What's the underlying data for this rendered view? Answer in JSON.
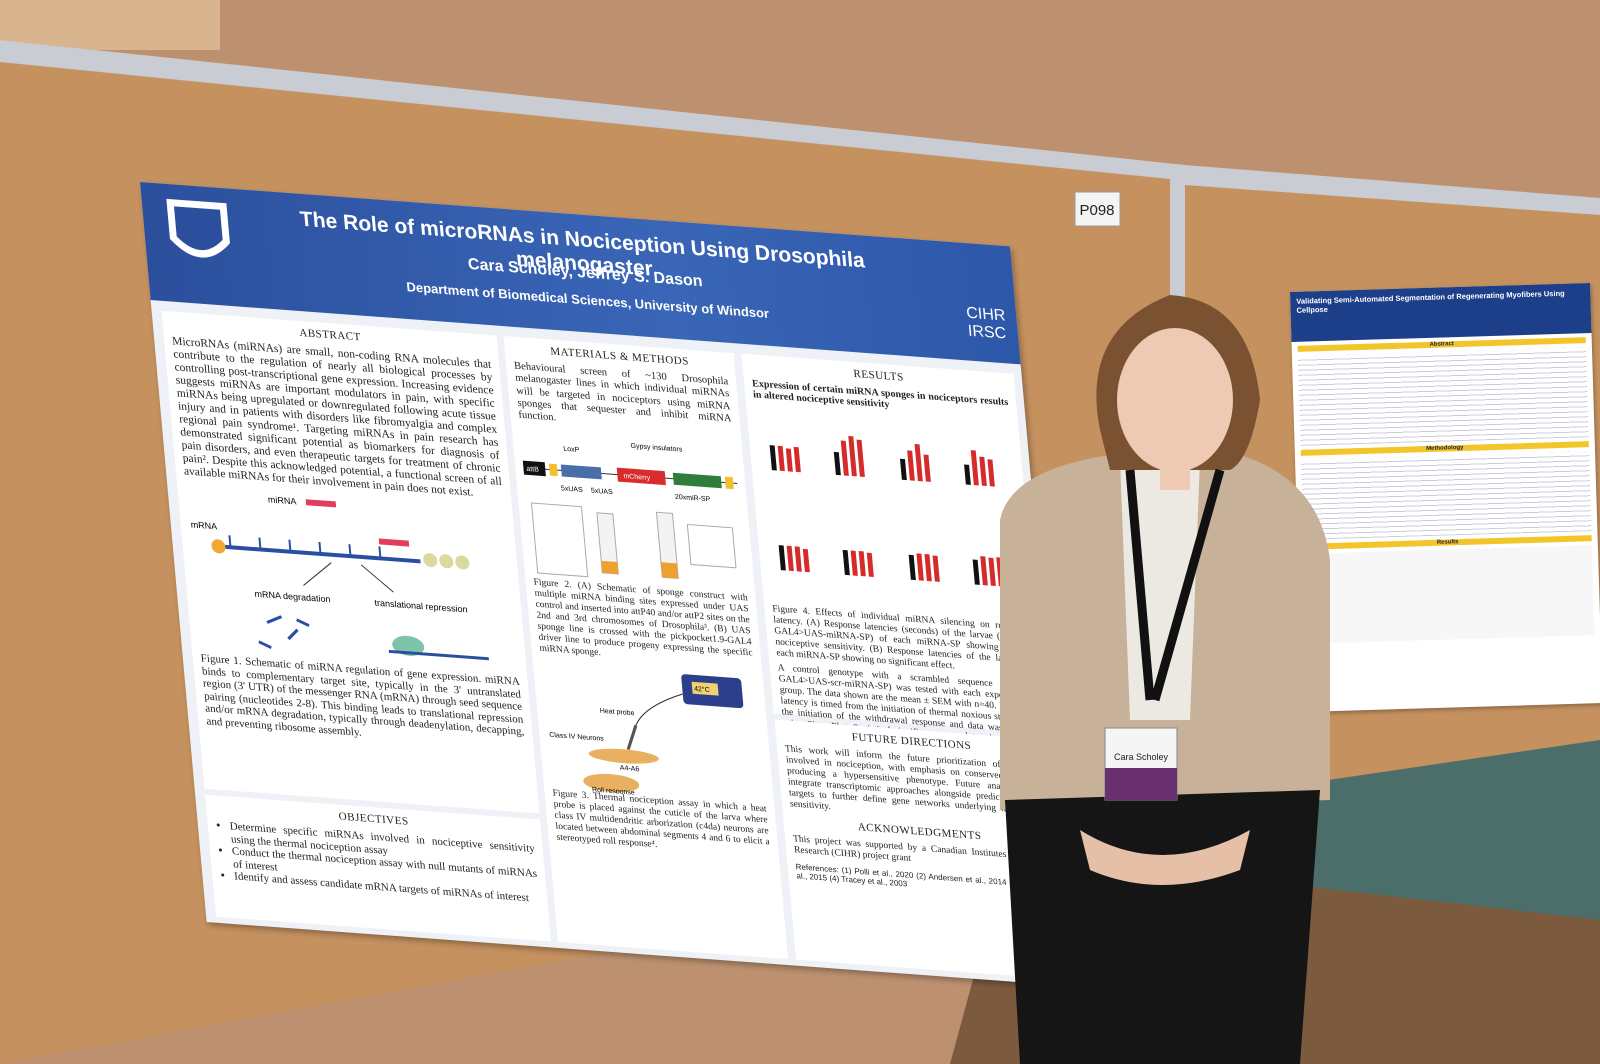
{
  "sign": "P098",
  "poster": {
    "title": "The Role of microRNAs in Nociception Using Drosophila melanogaster",
    "authors": "Cara Scholey, Jeffrey S. Dason",
    "department": "Department of Biomedical Sciences, University of Windsor",
    "logo_lines": [
      "CIHR",
      "IRSC"
    ],
    "abstract": {
      "heading": "ABSTRACT",
      "text": "MicroRNAs (miRNAs) are small, non-coding RNA molecules that contribute to the regulation of nearly all biological processes by controlling post-transcriptional gene expression. Increasing evidence suggests miRNAs are important modulators in pain, with specific miRNAs being upregulated or downregulated following acute tissue injury and in patients with disorders like fibromyalgia and complex regional pain syndrome¹. Targeting miRNAs in pain research has demonstrated significant potential as biomarkers for diagnosis of pain disorders, and even therapeutic targets for treatment of chronic pain². Despite this acknowledged potential, a functional screen of all available miRNAs for their involvement in pain does not exist."
    },
    "figure1": {
      "labels": [
        "miRNA",
        "mRNA",
        "mRNA degradation",
        "translational repression"
      ],
      "caption": "Figure 1. Schematic of miRNA regulation of gene expression. miRNA binds to complementary target site, typically in the 3' untranslated region (3' UTR) of the messenger RNA (mRNA) through seed sequence pairing (nucleotides 2-8). This binding leads to translational repression and/or mRNA degradation, typically through deadenylation, decapping, and preventing ribosome assembly."
    },
    "objectives": {
      "heading": "OBJECTIVES",
      "items": [
        "Determine specific miRNAs involved in nociceptive sensitivity using the thermal nociception assay",
        "Conduct the thermal nociception assay with null mutants of miRNAs of interest",
        "Identify and assess candidate mRNA targets of miRNAs of interest"
      ]
    },
    "methods": {
      "heading": "MATERIALS & METHODS",
      "text": "Behavioural screen of ~130 Drosophila melanogaster lines in which individual miRNAs will be targeted in nociceptors using miRNA sponges that sequester and inhibit miRNA function.",
      "construct_labels": [
        "attB",
        "LoxP",
        "Gypsy insulators",
        "mCherry",
        "5xUAS",
        "5xUAS",
        "20xmiR-SP"
      ],
      "figure2_caption": "Figure 2. (A) Schematic of sponge construct with multiple miRNA binding sites expressed under UAS control and inserted into attP40 and/or attP2 sites on the 2nd and 3rd chromosomes of Drosophila³. (B) UAS sponge line is crossed with the pickpocket1.9-GAL4 driver line to produce progeny expressing the specific miRNA sponge.",
      "figure3_labels": [
        "Heat probe",
        "42°C",
        "Class IV Neurons",
        "A4-A6",
        "Roll response"
      ],
      "figure3_caption": "Figure 3. Thermal nociception assay in which a heat probe is placed against the cuticle of the larva where class IV multidendritic arborization (c4da) neurons are located between abdominal segments 4 and 6 to elicit a stereotyped roll response⁴."
    },
    "results": {
      "heading": "RESULTS",
      "subheading": "Expression of certain miRNA sponges in nociceptors results in altered nociceptive sensitivity",
      "figure4_caption": "Figure 4. Effects of individual miRNA silencing on response latency. (A) Response latencies (seconds) of the larvae (ppk1.9-GAL4>UAS-miRNA-SP) of each miRNA-SP showing altered nociceptive sensitivity. (B) Response latencies of the larvae of each miRNA-SP showing no significant effect.",
      "text": "A control genotype with a scrambled sequence (ppk1.9-GAL4>UAS-scr-miRNA-SP) was tested with each experimental group. The data shown are the mean ± SEM with n=40. Response latency is timed from the initiation of thermal noxious stimulus to the initiation of the withdrawal response and data was graphed using SigmaPlot. Statistical significance was determined using a one-way ANOVA for parametric data and a Kruskal-Wallis one-way ANOVA on ranks for non-parametric data. Asterisks denote statistical significance relative to the scramble control."
    },
    "future": {
      "heading": "FUTURE DIRECTIONS",
      "text": "This work will inform the future prioritization of miRNAs involved in nociception, with emphasis on conserved miRNAs producing a hypersensitive phenotype. Future analyses may integrate transcriptomic approaches alongside predicted mRNA targets to further define gene networks underlying nociceptive sensitivity."
    },
    "acknowledgments": {
      "heading": "ACKNOWLEDGMENTS",
      "text": "This project was supported by a Canadian Institutes of Health Research (CIHR) project grant"
    },
    "references": "References: (1) Polli et al., 2020 (2) Andersen et al., 2014 (3) Fulga et al., 2015 (4) Tracey et al., 2003"
  },
  "badge": {
    "name": "Cara Scholey"
  },
  "neighbor_poster": {
    "title": "Validating Semi-Automated Segmentation of Regenerating Myofibers Using Cellpose",
    "sections": [
      "Abstract",
      "Methodology",
      "Results"
    ]
  }
}
